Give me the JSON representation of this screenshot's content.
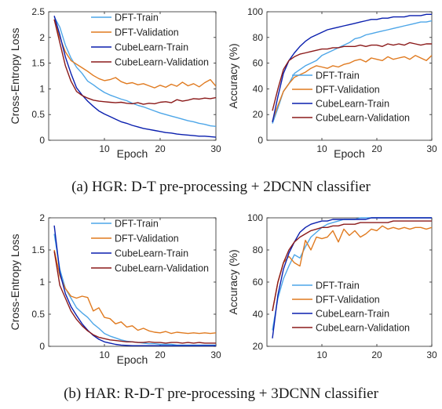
{
  "colors": {
    "dft_train": "#4DA6E8",
    "dft_validation": "#E07A1F",
    "cubelearn_train": "#0A1FAE",
    "cubelearn_validation": "#8B1A1A"
  },
  "captions": {
    "a": "(a) HGR: D-T pre-processing + 2DCNN classifier",
    "b": "(b) HAR: R-D-T pre-processing + 3DCNN classifier"
  },
  "chart_data": [
    {
      "type": "line",
      "xlabel": "Epoch",
      "ylabel": "Cross-Entropy Loss",
      "xlim": [
        0,
        30
      ],
      "ylim": [
        0,
        2.5
      ],
      "xticks": [
        "10",
        "20",
        "30"
      ],
      "yticks": [
        "0",
        "0.5",
        "1",
        "1.5",
        "2",
        "2.5"
      ],
      "legend_position": "top-right",
      "x": [
        1,
        2,
        3,
        4,
        5,
        6,
        7,
        8,
        9,
        10,
        11,
        12,
        13,
        14,
        15,
        16,
        17,
        18,
        19,
        20,
        21,
        22,
        23,
        24,
        25,
        26,
        27,
        28,
        29,
        30
      ],
      "series": [
        {
          "name": "DFT-Train",
          "color_key": "dft_train",
          "values": [
            2.4,
            2.2,
            1.85,
            1.6,
            1.42,
            1.3,
            1.15,
            1.08,
            1.0,
            0.93,
            0.88,
            0.84,
            0.8,
            0.77,
            0.72,
            0.68,
            0.65,
            0.61,
            0.57,
            0.53,
            0.5,
            0.47,
            0.44,
            0.41,
            0.38,
            0.36,
            0.33,
            0.31,
            0.28,
            0.27
          ]
        },
        {
          "name": "DFT-Validation",
          "color_key": "dft_validation",
          "values": [
            2.35,
            2.0,
            1.72,
            1.55,
            1.48,
            1.41,
            1.34,
            1.26,
            1.2,
            1.16,
            1.18,
            1.22,
            1.14,
            1.1,
            1.12,
            1.08,
            1.1,
            1.06,
            1.02,
            1.07,
            1.03,
            1.09,
            1.05,
            1.13,
            1.06,
            1.1,
            1.04,
            1.12,
            1.18,
            1.05
          ]
        },
        {
          "name": "CubeLearn-Train",
          "color_key": "cubelearn_train",
          "values": [
            2.42,
            2.05,
            1.62,
            1.3,
            1.02,
            0.88,
            0.76,
            0.66,
            0.57,
            0.51,
            0.46,
            0.41,
            0.36,
            0.33,
            0.29,
            0.26,
            0.23,
            0.21,
            0.19,
            0.17,
            0.15,
            0.14,
            0.12,
            0.11,
            0.1,
            0.09,
            0.08,
            0.08,
            0.07,
            0.06
          ]
        },
        {
          "name": "CubeLearn-Validation",
          "color_key": "cubelearn_validation",
          "values": [
            2.35,
            1.9,
            1.45,
            1.15,
            0.95,
            0.87,
            0.82,
            0.78,
            0.76,
            0.75,
            0.74,
            0.73,
            0.74,
            0.72,
            0.71,
            0.73,
            0.7,
            0.72,
            0.71,
            0.74,
            0.75,
            0.73,
            0.79,
            0.76,
            0.78,
            0.81,
            0.8,
            0.82,
            0.81,
            0.83
          ]
        }
      ]
    },
    {
      "type": "line",
      "xlabel": "Epoch",
      "ylabel": "Accuracy (%)",
      "xlim": [
        0,
        30
      ],
      "ylim": [
        0,
        100
      ],
      "xticks": [
        "10",
        "20",
        "30"
      ],
      "yticks": [
        "0",
        "20",
        "40",
        "60",
        "80",
        "100"
      ],
      "legend_position": "bottom-right",
      "x": [
        1,
        2,
        3,
        4,
        5,
        6,
        7,
        8,
        9,
        10,
        11,
        12,
        13,
        14,
        15,
        16,
        17,
        18,
        19,
        20,
        21,
        22,
        23,
        24,
        25,
        26,
        27,
        28,
        29,
        30
      ],
      "series": [
        {
          "name": "DFT-Train",
          "color_key": "dft_train",
          "values": [
            13,
            25,
            38,
            44,
            52,
            55,
            58,
            60,
            62,
            66,
            68,
            70,
            72,
            74,
            76,
            79,
            80,
            82,
            83,
            84,
            85,
            86,
            87,
            88,
            89,
            90,
            91,
            92,
            92,
            93
          ]
        },
        {
          "name": "DFT-Validation",
          "color_key": "dft_validation",
          "values": [
            15,
            27,
            38,
            44,
            49,
            51,
            53,
            56,
            58,
            57,
            56,
            58,
            57,
            59,
            60,
            62,
            63,
            61,
            64,
            63,
            62,
            65,
            63,
            64,
            65,
            63,
            66,
            64,
            62,
            66
          ]
        },
        {
          "name": "CubeLearn-Train",
          "color_key": "cubelearn_train",
          "values": [
            14,
            34,
            52,
            62,
            68,
            73,
            77,
            80,
            82,
            84,
            86,
            87,
            88,
            89,
            90,
            91,
            92,
            93,
            94,
            94,
            95,
            95,
            96,
            96,
            96,
            97,
            97,
            97,
            98,
            98
          ]
        },
        {
          "name": "CubeLearn-Validation",
          "color_key": "cubelearn_validation",
          "values": [
            23,
            40,
            55,
            62,
            65,
            67,
            68,
            69,
            70,
            71,
            71,
            72,
            72,
            73,
            73,
            73,
            74,
            73,
            74,
            74,
            73,
            75,
            74,
            75,
            74,
            76,
            75,
            74,
            75,
            75
          ]
        }
      ]
    },
    {
      "type": "line",
      "xlabel": "Epoch",
      "ylabel": "Cross-Entropy Loss",
      "xlim": [
        0,
        30
      ],
      "ylim": [
        0,
        2
      ],
      "xticks": [
        "10",
        "20",
        "30"
      ],
      "yticks": [
        "0",
        "0.5",
        "1",
        "1.5",
        "2"
      ],
      "legend_position": "top-right",
      "x": [
        1,
        2,
        3,
        4,
        5,
        6,
        7,
        8,
        9,
        10,
        11,
        12,
        13,
        14,
        15,
        16,
        17,
        18,
        19,
        20,
        21,
        22,
        23,
        24,
        25,
        26,
        27,
        28,
        29,
        30
      ],
      "series": [
        {
          "name": "DFT-Train",
          "color_key": "dft_train",
          "values": [
            1.75,
            1.2,
            0.9,
            0.75,
            0.6,
            0.52,
            0.45,
            0.35,
            0.28,
            0.2,
            0.16,
            0.13,
            0.1,
            0.08,
            0.07,
            0.06,
            0.05,
            0.04,
            0.04,
            0.03,
            0.03,
            0.03,
            0.02,
            0.02,
            0.02,
            0.02,
            0.02,
            0.02,
            0.02,
            0.02
          ]
        },
        {
          "name": "DFT-Validation",
          "color_key": "dft_validation",
          "values": [
            1.5,
            1.1,
            0.9,
            0.78,
            0.75,
            0.78,
            0.76,
            0.55,
            0.6,
            0.45,
            0.43,
            0.35,
            0.38,
            0.3,
            0.32,
            0.25,
            0.28,
            0.24,
            0.22,
            0.21,
            0.23,
            0.2,
            0.22,
            0.21,
            0.2,
            0.21,
            0.2,
            0.21,
            0.2,
            0.21
          ]
        },
        {
          "name": "CubeLearn-Train",
          "color_key": "cubelearn_train",
          "values": [
            1.88,
            1.15,
            0.82,
            0.62,
            0.48,
            0.35,
            0.25,
            0.17,
            0.11,
            0.07,
            0.05,
            0.03,
            0.02,
            0.015,
            0.01,
            0.01,
            0.01,
            0.01,
            0.01,
            0.01,
            0.01,
            0.01,
            0.01,
            0.01,
            0.01,
            0.01,
            0.01,
            0.01,
            0.01,
            0.01
          ]
        },
        {
          "name": "CubeLearn-Validation",
          "color_key": "cubelearn_validation",
          "values": [
            1.48,
            0.95,
            0.75,
            0.55,
            0.42,
            0.32,
            0.24,
            0.18,
            0.14,
            0.12,
            0.1,
            0.09,
            0.08,
            0.07,
            0.07,
            0.06,
            0.06,
            0.07,
            0.06,
            0.06,
            0.05,
            0.06,
            0.06,
            0.05,
            0.06,
            0.05,
            0.06,
            0.05,
            0.05,
            0.05
          ]
        }
      ]
    },
    {
      "type": "line",
      "xlabel": "",
      "ylabel": "Accuracy (%)",
      "xlim": [
        0,
        30
      ],
      "ylim": [
        20,
        100
      ],
      "xticks": [
        "10",
        "20",
        "30"
      ],
      "yticks": [
        "20",
        "40",
        "60",
        "80",
        "100"
      ],
      "legend_position": "bottom-right",
      "x": [
        1,
        2,
        3,
        4,
        5,
        6,
        7,
        8,
        9,
        10,
        11,
        12,
        13,
        14,
        15,
        16,
        17,
        18,
        19,
        20,
        21,
        22,
        23,
        24,
        25,
        26,
        27,
        28,
        29,
        30
      ],
      "series": [
        {
          "name": "DFT-Train",
          "color_key": "dft_train",
          "values": [
            30,
            50,
            62,
            70,
            77,
            75,
            82,
            88,
            91,
            94,
            96,
            97,
            98,
            99,
            99,
            99,
            100,
            100,
            100,
            100,
            100,
            100,
            100,
            100,
            100,
            100,
            100,
            100,
            100,
            100
          ]
        },
        {
          "name": "DFT-Validation",
          "color_key": "dft_validation",
          "values": [
            42,
            60,
            72,
            76,
            72,
            70,
            86,
            80,
            88,
            87,
            88,
            92,
            85,
            93,
            89,
            92,
            88,
            90,
            93,
            92,
            95,
            93,
            94,
            93,
            94,
            93,
            94,
            94,
            93,
            94
          ]
        },
        {
          "name": "CubeLearn-Train",
          "color_key": "cubelearn_train",
          "values": [
            25,
            52,
            68,
            78,
            85,
            91,
            94,
            96,
            97,
            98,
            98,
            99,
            99,
            99,
            99,
            99,
            99,
            99,
            100,
            100,
            100,
            100,
            100,
            100,
            100,
            100,
            100,
            100,
            100,
            100
          ]
        },
        {
          "name": "CubeLearn-Validation",
          "color_key": "cubelearn_validation",
          "values": [
            42,
            60,
            72,
            80,
            85,
            88,
            90,
            92,
            93,
            94,
            94,
            95,
            95,
            96,
            96,
            96,
            97,
            97,
            97,
            97,
            97,
            97,
            98,
            98,
            98,
            98,
            98,
            98,
            98,
            98
          ]
        }
      ]
    }
  ]
}
